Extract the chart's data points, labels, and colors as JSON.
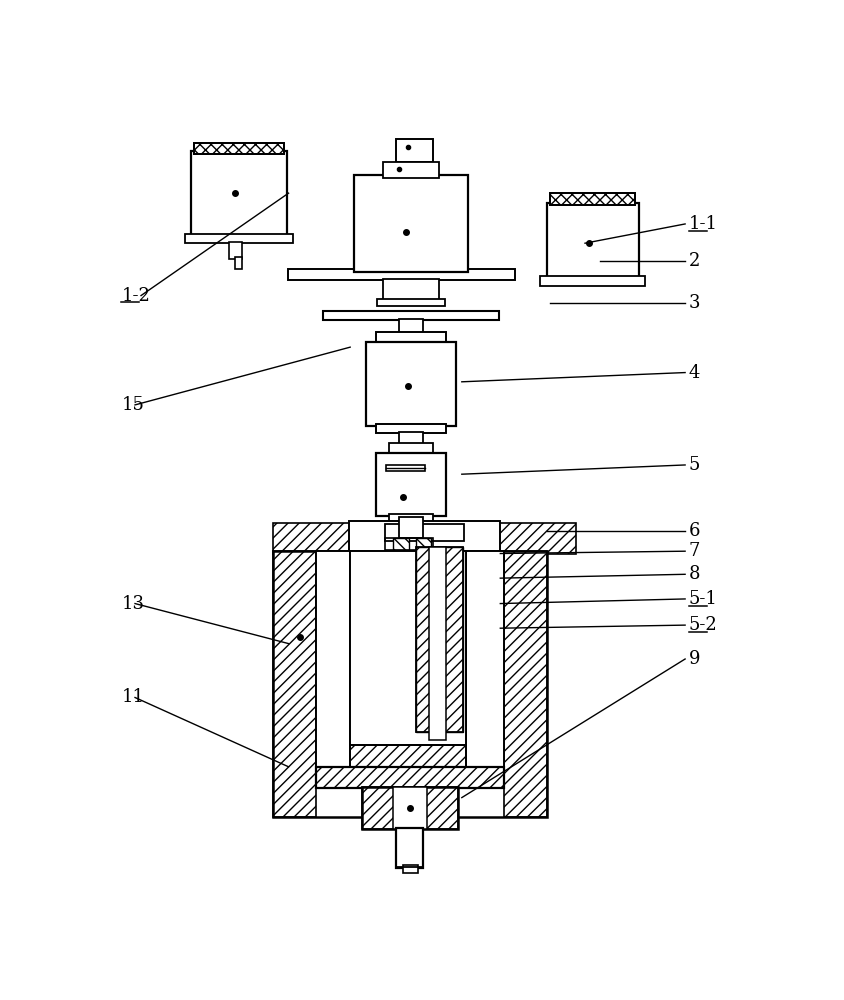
{
  "bg_color": "#ffffff",
  "line_color": "#000000",
  "figsize": [
    8.44,
    10.0
  ],
  "dpi": 100,
  "labels_right": [
    [
      "1-1",
      755,
      135,
      620,
      160,
      true
    ],
    [
      "2",
      755,
      183,
      640,
      183,
      false
    ],
    [
      "3",
      755,
      238,
      575,
      238,
      false
    ],
    [
      "4",
      755,
      328,
      460,
      340,
      false
    ],
    [
      "5",
      755,
      448,
      460,
      460,
      false
    ],
    [
      "6",
      755,
      534,
      570,
      534,
      false
    ],
    [
      "7",
      755,
      560,
      510,
      563,
      false
    ],
    [
      "8",
      755,
      590,
      510,
      595,
      false
    ],
    [
      "5-1",
      755,
      622,
      510,
      628,
      true
    ],
    [
      "5-2",
      755,
      656,
      510,
      660,
      true
    ],
    [
      "9",
      755,
      700,
      460,
      880,
      false
    ]
  ],
  "labels_left": [
    [
      "1-2",
      18,
      228,
      235,
      95,
      true
    ],
    [
      "15",
      18,
      370,
      315,
      295,
      false
    ],
    [
      "13",
      18,
      628,
      235,
      680,
      false
    ],
    [
      "11",
      18,
      750,
      235,
      840,
      false
    ]
  ]
}
